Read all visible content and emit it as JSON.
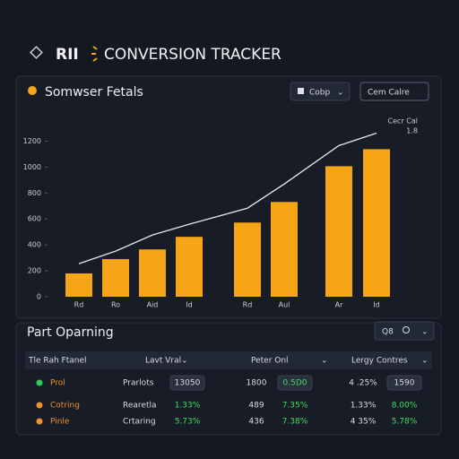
{
  "header": {
    "brand": "RII",
    "title": "CONVERSION TRACKER"
  },
  "panel": {
    "title": "Somwser Fetals",
    "dropdown": "Cobp",
    "button": "Cem Calre"
  },
  "chart_data": {
    "type": "bar_line",
    "categories": [
      "Rd",
      "Ro",
      "Aid",
      "Id",
      "Rd",
      "Aul",
      "Ar",
      "Id"
    ],
    "series": [
      {
        "type": "bar",
        "color": "#f5a516",
        "values": [
          180,
          290,
          365,
          462,
          572,
          731,
          1007,
          1138
        ]
      },
      {
        "type": "line",
        "color": "#e8e8ea",
        "values": [
          255,
          352,
          476,
          559,
          683,
          869,
          1166,
          1262
        ]
      }
    ],
    "ylim": [
      0,
      1300
    ],
    "yticks": [
      0,
      200,
      400,
      600,
      800,
      1000,
      1200
    ],
    "annotations": [
      "Cecr Cal",
      "1.8"
    ]
  },
  "table": {
    "title": "Part Oparning",
    "filter": "Q8",
    "headers": [
      "Tle Rah Ftanel",
      "Lavt Vral",
      "Peter Onl",
      "Lergy Contres"
    ],
    "rows": [
      {
        "dot": "#2ecc55",
        "cells": [
          "Prol",
          "Prarlots",
          "13050",
          "1800",
          "0.5D0",
          "4 .25%",
          "1590"
        ]
      },
      {
        "dot": "#f0902a",
        "cells": [
          "Cotring",
          "Rearetla",
          "1.33%",
          "489",
          "7.35%",
          "1.33%",
          "8.00%"
        ]
      },
      {
        "dot": "#f0902a",
        "cells": [
          "Pinle",
          "Crtaring",
          "5.73%",
          "436",
          "7.38%",
          "4 35%",
          "5.78%"
        ]
      }
    ]
  }
}
